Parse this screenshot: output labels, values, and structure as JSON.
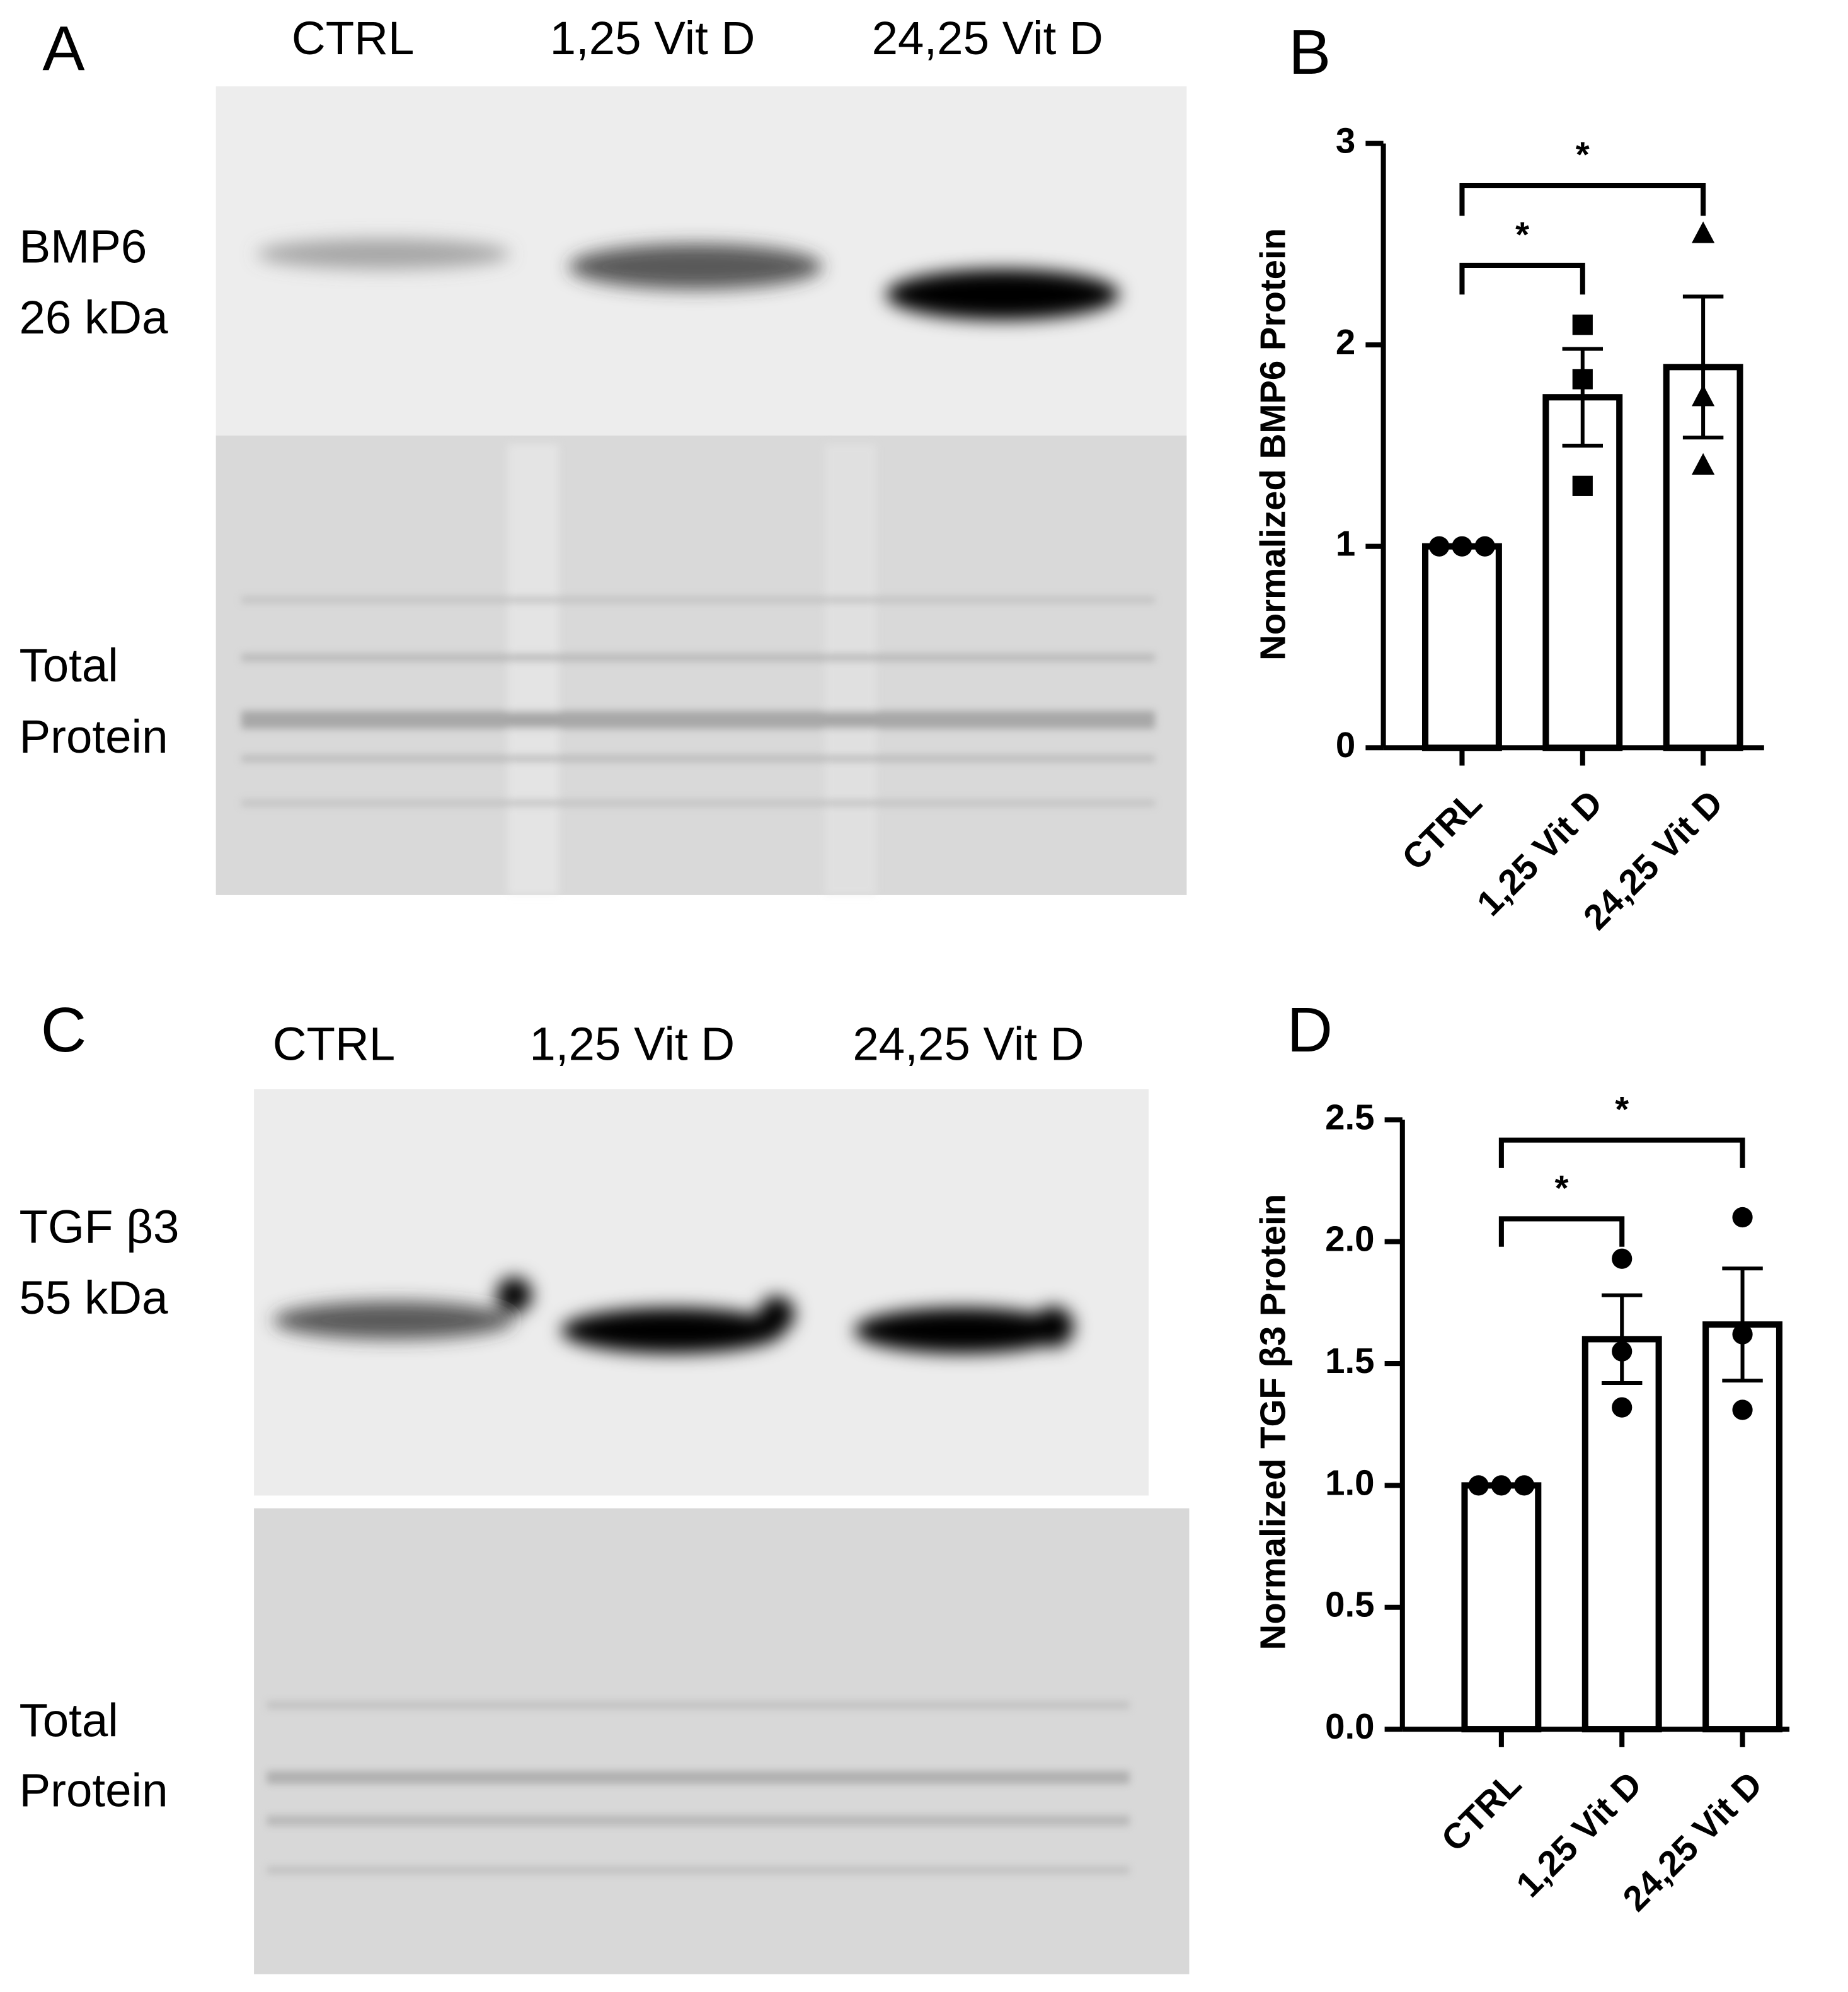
{
  "blots": [
    {
      "panel": "A",
      "lanes": [
        "CTRL",
        "1,25 Vit D",
        "24,25 Vit D"
      ],
      "rows": [
        [
          "BMP6",
          "26 kDa"
        ],
        [
          "Total",
          "Protein"
        ]
      ]
    },
    {
      "panel": "C",
      "lanes": [
        "CTRL",
        "1,25 Vit D",
        "24,25 Vit D"
      ],
      "rows": [
        [
          "TGF β3",
          "55 kDa"
        ],
        [
          "Total",
          "Protein"
        ]
      ]
    }
  ],
  "chart_data": [
    {
      "type": "bar",
      "panel": "B",
      "y_label": "Normalized BMP6 Protein",
      "categories": [
        "CTRL",
        "1,25 Vit D",
        "24,25 Vit D"
      ],
      "values": [
        1,
        1.74,
        1.89
      ],
      "errors": [
        0,
        0.24,
        0.35
      ],
      "points": [
        [
          1,
          1,
          1
        ],
        [
          2.1,
          1.83,
          1.3
        ],
        [
          2.55,
          1.74,
          1.4
        ]
      ],
      "markers": [
        "circle",
        "square",
        "triangle"
      ],
      "ylim": [
        0,
        3
      ],
      "yticks": [
        0,
        1,
        2,
        3
      ],
      "annotations": [
        "*",
        "*"
      ],
      "color": "#000000"
    },
    {
      "type": "bar",
      "panel": "D",
      "y_label": "Normalized TGF β3 Protein",
      "categories": [
        "CTRL",
        "1,25 Vit D",
        "24,25 Vit D"
      ],
      "values": [
        1,
        1.6,
        1.66
      ],
      "errors": [
        0,
        0.18,
        0.23
      ],
      "points": [
        [
          1,
          1,
          1
        ],
        [
          1.93,
          1.55,
          1.32
        ],
        [
          2.1,
          1.62,
          1.31
        ]
      ],
      "markers": [
        "circle",
        "circle",
        "circle"
      ],
      "ylim": [
        0,
        2.5
      ],
      "yticks": [
        {
          "value": 0,
          "label": "0.0"
        },
        0.5,
        {
          "value": 1,
          "label": "1.0"
        },
        1.5,
        {
          "value": 2,
          "label": "2.0"
        },
        2.5
      ],
      "annotations": [
        "*",
        "*"
      ],
      "color": "#000000"
    }
  ]
}
